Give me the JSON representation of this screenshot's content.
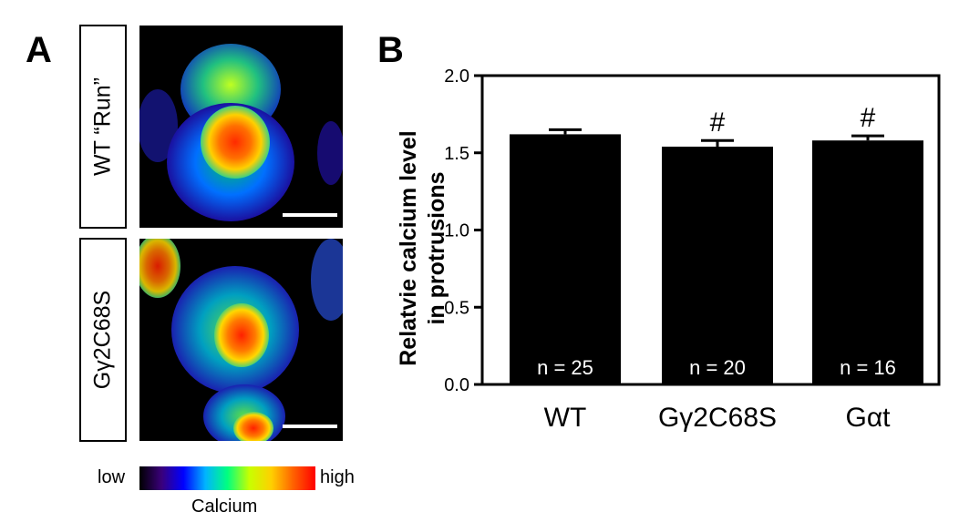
{
  "panel_a": {
    "letter": "A",
    "rows": [
      {
        "label": "WT “Run”"
      },
      {
        "label": "Gγ2C68S"
      }
    ],
    "colorbar": {
      "low_label": "low",
      "high_label": "high",
      "title": "Calcium",
      "colors": [
        "#000000",
        "#3a007a",
        "#0000ff",
        "#00b4ff",
        "#00ff80",
        "#c8ff00",
        "#ffd000",
        "#ff6000",
        "#ff0000"
      ]
    }
  },
  "panel_b": {
    "letter": "B"
  },
  "chart_data": {
    "type": "bar",
    "categories": [
      "WT",
      "Gγ2C68S",
      "Gαt"
    ],
    "values": [
      1.62,
      1.54,
      1.58
    ],
    "errors": [
      0.03,
      0.04,
      0.03
    ],
    "bar_labels": [
      "n = 25",
      "n = 20",
      "n = 16"
    ],
    "markers": [
      "",
      "#",
      "#"
    ],
    "ylabel_lines": [
      "Relatvie calcium level",
      "in protrusions"
    ],
    "xlabel": "",
    "ylim": [
      0,
      2.0
    ],
    "yticks": [
      "0.0",
      "0.5",
      "1.0",
      "1.5",
      "2.0"
    ],
    "ytick_values": [
      0,
      0.5,
      1.0,
      1.5,
      2.0
    ],
    "bar_color": "#000000"
  }
}
